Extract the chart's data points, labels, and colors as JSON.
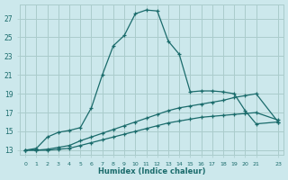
{
  "xlabel": "Humidex (Indice chaleur)",
  "bg_color": "#cce8ec",
  "grid_color": "#aacccc",
  "line_color": "#1a6b6b",
  "xlim": [
    -0.5,
    23.5
  ],
  "ylim": [
    12.5,
    28.5
  ],
  "xticks": [
    0,
    1,
    2,
    3,
    4,
    5,
    6,
    7,
    8,
    9,
    10,
    11,
    12,
    13,
    14,
    15,
    16,
    17,
    18,
    19,
    20,
    21,
    23
  ],
  "xtick_labels": [
    "0",
    "1",
    "2",
    "3",
    "4",
    "5",
    "6",
    "7",
    "8",
    "9",
    "10",
    "11",
    "12",
    "13",
    "14",
    "15",
    "16",
    "17",
    "18",
    "19",
    "20",
    "21",
    "23"
  ],
  "yticks": [
    13,
    15,
    17,
    19,
    21,
    23,
    25,
    27
  ],
  "ytick_labels": [
    "13",
    "15",
    "17",
    "19",
    "21",
    "23",
    "25",
    "27"
  ],
  "x_main": [
    0,
    1,
    2,
    3,
    4,
    5,
    6,
    7,
    8,
    9,
    10,
    11,
    12,
    13,
    14,
    15,
    16,
    17,
    18,
    19,
    20,
    21,
    23
  ],
  "y_main": [
    13.0,
    13.2,
    14.4,
    14.9,
    15.1,
    15.4,
    17.5,
    21.0,
    24.1,
    25.2,
    27.5,
    27.9,
    27.8,
    24.6,
    23.2,
    19.2,
    19.3,
    19.3,
    19.2,
    19.0,
    17.2,
    15.8,
    16.0
  ],
  "x_ref1": [
    0,
    1,
    2,
    3,
    4,
    5,
    6,
    7,
    8,
    9,
    10,
    11,
    12,
    13,
    14,
    15,
    16,
    17,
    18,
    19,
    20,
    21,
    23
  ],
  "y_ref1": [
    13.0,
    13.0,
    13.1,
    13.3,
    13.5,
    14.0,
    14.4,
    14.8,
    15.2,
    15.6,
    16.0,
    16.4,
    16.8,
    17.2,
    17.5,
    17.7,
    17.9,
    18.1,
    18.3,
    18.6,
    18.8,
    19.0,
    16.0
  ],
  "x_ref2": [
    0,
    1,
    2,
    3,
    4,
    5,
    6,
    7,
    8,
    9,
    10,
    11,
    12,
    13,
    14,
    15,
    16,
    17,
    18,
    19,
    20,
    21,
    23
  ],
  "y_ref2": [
    13.0,
    13.0,
    13.0,
    13.1,
    13.2,
    13.5,
    13.8,
    14.1,
    14.4,
    14.7,
    15.0,
    15.3,
    15.6,
    15.9,
    16.1,
    16.3,
    16.5,
    16.6,
    16.7,
    16.8,
    16.9,
    17.0,
    16.2
  ]
}
